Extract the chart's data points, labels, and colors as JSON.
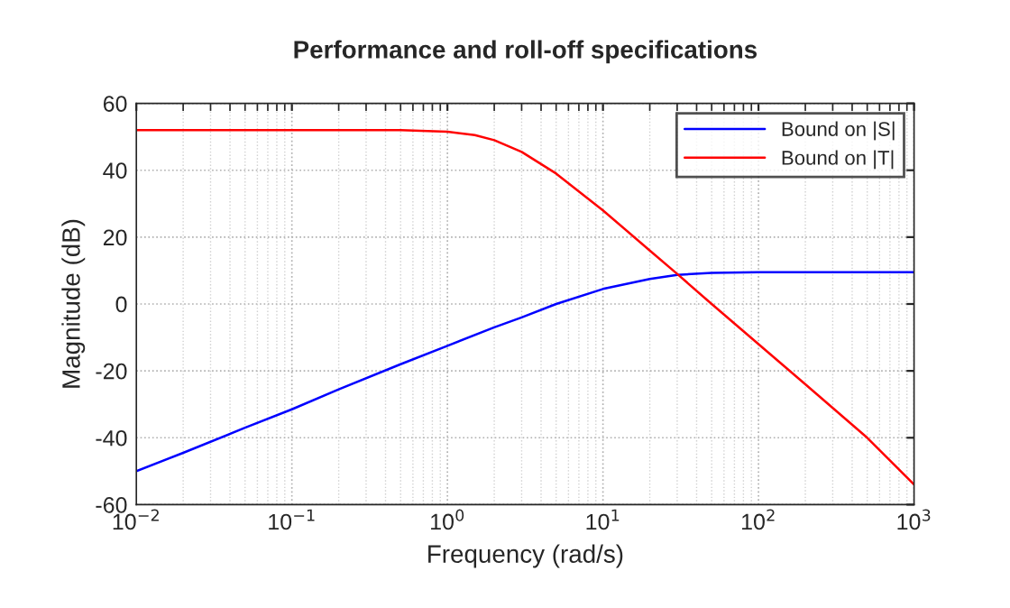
{
  "chart_data": {
    "type": "line",
    "title": "Performance and roll-off specifications",
    "xlabel": "Frequency (rad/s)",
    "ylabel": "Magnitude (dB)",
    "log": "x",
    "xlim": [
      0.01,
      1000
    ],
    "xticks": [
      {
        "value": 0.01,
        "label": "10$^{−2}$"
      },
      {
        "value": 0.1,
        "label": "10$^{−1}$"
      },
      {
        "value": 1,
        "label": "10$^{0}$"
      },
      {
        "value": 10,
        "label": "10$^{1}$"
      },
      {
        "value": 100,
        "label": "10$^{2}$"
      },
      {
        "value": 1000,
        "label": "10$^{3}$"
      }
    ],
    "ylim": [
      -60,
      60
    ],
    "yticks": [
      -60,
      -40,
      -20,
      0,
      20,
      40,
      60
    ],
    "grid": true,
    "legend": "top right",
    "marker": "none",
    "line_style": "solid",
    "series": [
      {
        "name": "Bound on |S|",
        "color": "#0000ff",
        "x": [
          0.01,
          0.02,
          0.05,
          0.1,
          0.2,
          0.5,
          1,
          2,
          3,
          5,
          10,
          20,
          30,
          50,
          100,
          1000
        ],
        "values": [
          -50,
          -44.5,
          -37,
          -31.5,
          -25.5,
          -18,
          -12.5,
          -7,
          -4,
          0,
          4.5,
          7.5,
          8.7,
          9.3,
          9.5,
          9.5
        ]
      },
      {
        "name": "Bound on |T|",
        "color": "#ff0000",
        "x": [
          0.01,
          0.1,
          0.5,
          1,
          1.5,
          2,
          3,
          5,
          10,
          20,
          30,
          50,
          100,
          200,
          500,
          1000
        ],
        "values": [
          52,
          52,
          52,
          51.5,
          50.5,
          49,
          45.5,
          39,
          28,
          16,
          9,
          0,
          -12,
          -24,
          -40,
          -54
        ]
      }
    ]
  }
}
